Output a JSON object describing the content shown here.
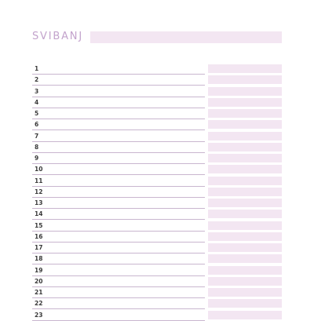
{
  "month": {
    "title": "SVIBANJ"
  },
  "days": [
    "1",
    "2",
    "3",
    "4",
    "5",
    "6",
    "7",
    "8",
    "9",
    "10",
    "11",
    "12",
    "13",
    "14",
    "15",
    "16",
    "17",
    "18",
    "19",
    "20",
    "21",
    "22",
    "23"
  ],
  "colors": {
    "title": "#c3a3cc",
    "accent_fill": "#f3e6f2",
    "rule_line": "#c9b6cf",
    "day_number": "#3a3a3a"
  }
}
